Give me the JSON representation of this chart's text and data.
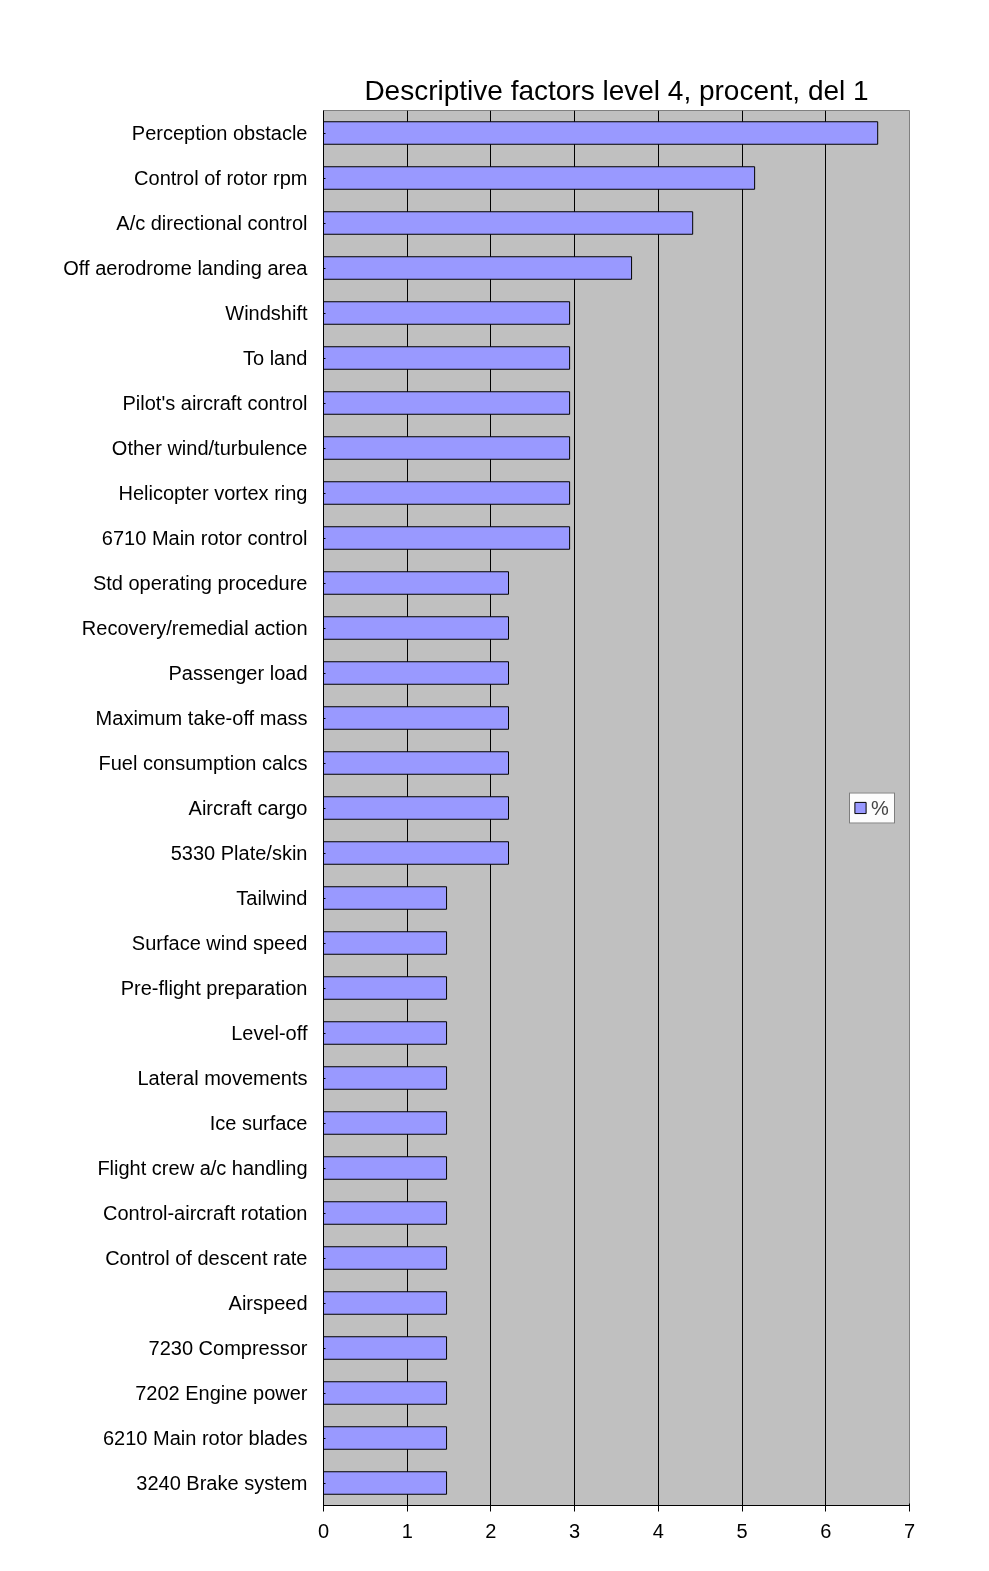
{
  "chart_data": {
    "type": "bar",
    "orientation": "horizontal",
    "title": "Descriptive factors level 4, procent, del 1",
    "categories": [
      "Perception obstacle",
      "Control of rotor rpm",
      "A/c directional control",
      "Off aerodrome landing area",
      "Windshift",
      "To land",
      "Pilot's aircraft control",
      "Other wind/turbulence",
      "Helicopter vortex ring",
      "6710 Main rotor control",
      "Std operating procedure",
      "Recovery/remedial action",
      "Passenger load",
      "Maximum take-off mass",
      "Fuel consumption calcs",
      "Aircraft cargo",
      "5330 Plate/skin",
      "Tailwind",
      "Surface wind speed",
      "Pre-flight preparation",
      "Level-off",
      "Lateral movements",
      "Ice surface",
      "Flight crew a/c handling",
      "Control-aircraft rotation",
      "Control of descent rate",
      "Airspeed",
      "7230 Compressor",
      "7202 Engine power",
      "6210 Main rotor blades",
      "3240 Brake system"
    ],
    "series": [
      {
        "name": "%",
        "color": "#9999ff",
        "values": [
          6.62,
          5.15,
          4.41,
          3.68,
          2.94,
          2.94,
          2.94,
          2.94,
          2.94,
          2.94,
          2.21,
          2.21,
          2.21,
          2.21,
          2.21,
          2.21,
          2.21,
          1.47,
          1.47,
          1.47,
          1.47,
          1.47,
          1.47,
          1.47,
          1.47,
          1.47,
          1.47,
          1.47,
          1.47,
          1.47,
          1.47
        ]
      }
    ],
    "xlim": [
      0,
      7
    ],
    "xticks": [
      0,
      1,
      2,
      3,
      4,
      5,
      6,
      7
    ],
    "grid": "x",
    "legend": "right"
  }
}
